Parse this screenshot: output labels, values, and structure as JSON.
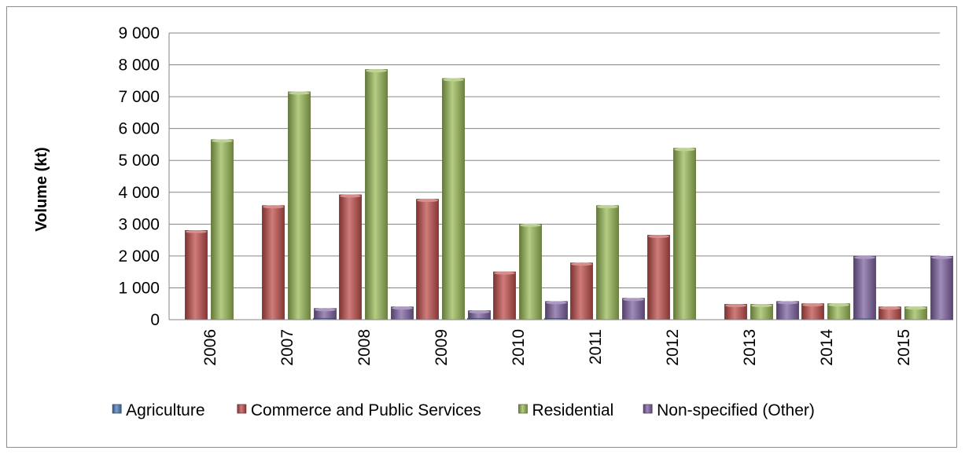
{
  "chart_data": {
    "type": "bar",
    "title": "",
    "xlabel": "",
    "ylabel": "Volume (kt)",
    "ylim": [
      0,
      9000
    ],
    "yticks": [
      0,
      1000,
      2000,
      3000,
      4000,
      5000,
      6000,
      7000,
      8000,
      9000
    ],
    "ytick_labels": [
      "0",
      "1 000",
      "2 000",
      "3 000",
      "4 000",
      "5 000",
      "6 000",
      "7 000",
      "8 000",
      "9 000"
    ],
    "categories": [
      "2006",
      "2007",
      "2008",
      "2009",
      "2010",
      "2011",
      "2012",
      "2013",
      "2014",
      "2015"
    ],
    "grid": true,
    "legend_position": "bottom",
    "series": [
      {
        "name": "Agriculture",
        "color": "#4f81bd",
        "values": [
          0,
          0,
          40,
          0,
          40,
          40,
          0,
          0,
          0,
          25
        ]
      },
      {
        "name": "Commerce and Public Services",
        "color": "#c0504d",
        "values": [
          2800,
          3580,
          3920,
          3780,
          1500,
          1780,
          2650,
          480,
          500,
          400
        ]
      },
      {
        "name": "Residential",
        "color": "#9bbb59",
        "values": [
          5650,
          7150,
          7850,
          7570,
          3000,
          3580,
          5380,
          480,
          500,
          400
        ]
      },
      {
        "name": "Non-specified (Other)",
        "color": "#8064a2",
        "values": [
          0,
          350,
          400,
          280,
          570,
          670,
          0,
          570,
          1990,
          1990
        ]
      }
    ]
  }
}
